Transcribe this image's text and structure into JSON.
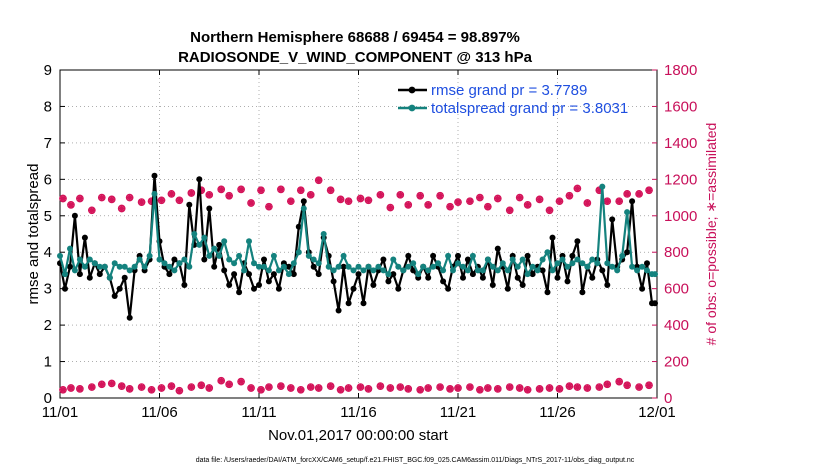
{
  "chart_data": {
    "type": "line",
    "title_line1": "Northern Hemisphere 68688 / 69454 = 98.897%",
    "title_line2": "RADIOSONDE_V_WIND_COMPONENT @ 313 hPa",
    "xlabel": "Nov.01,2017 00:00:00 start",
    "ylabel": "rmse and totalspread",
    "y2label": "# of obs: o=possible; ∗=assimilated",
    "footnote": "data file: /Users/raeder/DAI/ATM_forcXX/CAM6_setup/f.e21.FHIST_BGC.f09_025.CAM6assim.011/Diags_NTrS_2017-11/obs_diag_output.nc",
    "xlim": [
      0,
      30
    ],
    "ylim": [
      0,
      9
    ],
    "y2lim": [
      0,
      1800
    ],
    "x_ticks": [
      0,
      5,
      10,
      15,
      20,
      25,
      30
    ],
    "x_tick_labels": [
      "11/01",
      "11/06",
      "11/11",
      "11/16",
      "11/21",
      "11/26",
      "12/01"
    ],
    "y_ticks": [
      0,
      1,
      2,
      3,
      4,
      5,
      6,
      7,
      8,
      9
    ],
    "y_tick_labels": [
      "0",
      "1",
      "2",
      "3",
      "4",
      "5",
      "6",
      "7",
      "8",
      "9"
    ],
    "y2_ticks": [
      0,
      200,
      400,
      600,
      800,
      1000,
      1200,
      1400,
      1600,
      1800
    ],
    "y2_tick_labels": [
      "0",
      "200",
      "400",
      "600",
      "800",
      "1000",
      "1200",
      "1400",
      "1600",
      "1800"
    ],
    "colors": {
      "rmse": "#000000",
      "totalspread": "#14827e",
      "obs": "#d4145a",
      "legend_text": "#1f4fe0",
      "right_axis": "#c8105a"
    },
    "series": [
      {
        "name": "rmse grand pr = 3.7789",
        "color": "#000000",
        "x": [
          0.0,
          0.25,
          0.5,
          0.75,
          1.0,
          1.25,
          1.5,
          1.75,
          2.0,
          2.25,
          2.5,
          2.75,
          3.0,
          3.25,
          3.5,
          3.75,
          4.0,
          4.25,
          4.5,
          4.75,
          5.0,
          5.25,
          5.5,
          5.75,
          6.0,
          6.25,
          6.5,
          6.75,
          7.0,
          7.25,
          7.5,
          7.75,
          8.0,
          8.25,
          8.5,
          8.75,
          9.0,
          9.25,
          9.5,
          9.75,
          10.0,
          10.25,
          10.5,
          10.75,
          11.0,
          11.25,
          11.5,
          11.75,
          12.0,
          12.25,
          12.5,
          12.75,
          13.0,
          13.25,
          13.5,
          13.75,
          14.0,
          14.25,
          14.5,
          14.75,
          15.0,
          15.25,
          15.5,
          15.75,
          16.0,
          16.25,
          16.5,
          16.75,
          17.0,
          17.25,
          17.5,
          17.75,
          18.0,
          18.25,
          18.5,
          18.75,
          19.0,
          19.25,
          19.5,
          19.75,
          20.0,
          20.25,
          20.5,
          20.75,
          21.0,
          21.25,
          21.5,
          21.75,
          22.0,
          22.25,
          22.5,
          22.75,
          23.0,
          23.25,
          23.5,
          23.75,
          24.0,
          24.25,
          24.5,
          24.75,
          25.0,
          25.25,
          25.5,
          25.75,
          26.0,
          26.25,
          26.5,
          26.75,
          27.0,
          27.25,
          27.5,
          27.75,
          28.0,
          28.25,
          28.5,
          28.75,
          29.0,
          29.25,
          29.5,
          29.75
        ],
        "values": [
          3.7,
          3.0,
          3.6,
          5.0,
          3.4,
          4.4,
          3.3,
          3.7,
          3.4,
          3.6,
          3.3,
          2.8,
          3.0,
          3.3,
          2.2,
          3.5,
          3.9,
          3.5,
          3.8,
          6.1,
          4.3,
          3.6,
          3.4,
          3.8,
          3.7,
          3.1,
          5.3,
          4.2,
          6.0,
          3.8,
          5.2,
          3.6,
          4.2,
          3.5,
          3.1,
          3.4,
          2.9,
          3.7,
          3.4,
          3.0,
          3.1,
          3.8,
          3.2,
          3.4,
          3.0,
          3.7,
          3.6,
          3.4,
          4.7,
          5.4,
          4.0,
          3.6,
          3.4,
          4.4,
          3.9,
          3.2,
          2.4,
          3.6,
          2.6,
          3.0,
          3.4,
          2.6,
          3.6,
          3.1,
          3.5,
          3.8,
          3.2,
          3.4,
          3.0,
          3.5,
          3.9,
          3.5,
          3.3,
          3.6,
          3.3,
          3.9,
          3.6,
          3.2,
          3.0,
          3.6,
          3.9,
          3.3,
          3.8,
          3.4,
          3.6,
          3.3,
          3.8,
          3.1,
          4.1,
          3.6,
          3.0,
          3.9,
          3.3,
          3.1,
          3.9,
          3.4,
          3.6,
          3.5,
          2.9,
          4.4,
          3.3,
          3.9,
          3.2,
          3.9,
          4.3,
          2.9,
          3.6,
          3.3,
          3.8,
          3.5,
          3.1,
          4.9,
          3.6,
          3.8,
          4.0,
          5.4,
          3.6,
          3.0,
          3.7,
          2.6
        ],
        "endpoint": [
          29.9,
          2.6
        ]
      },
      {
        "name": "totalspread grand pr = 3.8031",
        "color": "#14827e",
        "x": [
          0.0,
          0.25,
          0.5,
          0.75,
          1.0,
          1.25,
          1.5,
          1.75,
          2.0,
          2.25,
          2.5,
          2.75,
          3.0,
          3.25,
          3.5,
          3.75,
          4.0,
          4.25,
          4.5,
          4.75,
          5.0,
          5.25,
          5.5,
          5.75,
          6.0,
          6.25,
          6.5,
          6.75,
          7.0,
          7.25,
          7.5,
          7.75,
          8.0,
          8.25,
          8.5,
          8.75,
          9.0,
          9.25,
          9.5,
          9.75,
          10.0,
          10.25,
          10.5,
          10.75,
          11.0,
          11.25,
          11.5,
          11.75,
          12.0,
          12.25,
          12.5,
          12.75,
          13.0,
          13.25,
          13.5,
          13.75,
          14.0,
          14.25,
          14.5,
          14.75,
          15.0,
          15.25,
          15.5,
          15.75,
          16.0,
          16.25,
          16.5,
          16.75,
          17.0,
          17.25,
          17.5,
          17.75,
          18.0,
          18.25,
          18.5,
          18.75,
          19.0,
          19.25,
          19.5,
          19.75,
          20.0,
          20.25,
          20.5,
          20.75,
          21.0,
          21.25,
          21.5,
          21.75,
          22.0,
          22.25,
          22.5,
          22.75,
          23.0,
          23.25,
          23.5,
          23.75,
          24.0,
          24.25,
          24.5,
          24.75,
          25.0,
          25.25,
          25.5,
          25.75,
          26.0,
          26.25,
          26.5,
          26.75,
          27.0,
          27.25,
          27.5,
          27.75,
          28.0,
          28.25,
          28.5,
          28.75,
          29.0,
          29.25,
          29.5,
          29.75
        ],
        "values": [
          3.9,
          3.4,
          4.1,
          3.5,
          3.8,
          3.6,
          3.8,
          3.7,
          3.6,
          3.6,
          3.3,
          3.7,
          3.6,
          3.6,
          3.5,
          3.6,
          3.8,
          3.6,
          3.9,
          5.6,
          3.8,
          3.7,
          3.6,
          3.5,
          3.7,
          3.8,
          3.6,
          4.5,
          4.2,
          4.4,
          3.9,
          4.1,
          3.9,
          4.3,
          3.8,
          3.7,
          3.9,
          3.5,
          4.3,
          3.7,
          3.6,
          3.6,
          3.5,
          3.9,
          3.5,
          3.6,
          3.4,
          3.7,
          4.0,
          5.2,
          3.9,
          3.8,
          3.7,
          4.5,
          3.6,
          3.5,
          3.6,
          3.9,
          3.6,
          3.5,
          3.6,
          3.5,
          3.6,
          3.5,
          3.6,
          3.5,
          3.4,
          3.8,
          3.6,
          3.5,
          3.6,
          3.7,
          3.4,
          3.6,
          3.5,
          3.6,
          3.7,
          3.5,
          3.9,
          3.5,
          3.7,
          3.6,
          3.5,
          3.9,
          3.5,
          3.5,
          3.8,
          3.6,
          3.5,
          3.7,
          3.5,
          3.8,
          3.6,
          3.8,
          3.4,
          3.6,
          3.5,
          3.8,
          4.0,
          3.5,
          3.7,
          3.8,
          3.6,
          3.7,
          3.8,
          3.7,
          3.6,
          3.8,
          3.7,
          5.8,
          3.7,
          3.6,
          3.5,
          3.9,
          5.1,
          3.6,
          3.5,
          3.6,
          3.5,
          3.4
        ],
        "endpoint": [
          29.9,
          3.4
        ]
      },
      {
        "name": "obs possible",
        "marker": "circle",
        "x": [
          0.15,
          0.55,
          1.0,
          1.6,
          2.1,
          2.6,
          3.1,
          3.5,
          4.1,
          4.6,
          5.1,
          5.6,
          6.0,
          6.6,
          7.1,
          7.5,
          8.1,
          8.5,
          9.1,
          9.6,
          10.1,
          10.5,
          11.1,
          11.6,
          12.1,
          12.6,
          13.0,
          13.6,
          14.1,
          14.5,
          15.1,
          15.5,
          16.1,
          16.6,
          17.1,
          17.5,
          18.1,
          18.5,
          19.1,
          19.6,
          20.0,
          20.6,
          21.1,
          21.5,
          22.0,
          22.6,
          23.1,
          23.5,
          24.1,
          24.6,
          25.1,
          25.6,
          26.0,
          26.5,
          27.1,
          27.5,
          28.1,
          28.5,
          29.1,
          29.6
        ],
        "values": [
          1095,
          1060,
          1095,
          1030,
          1100,
          1090,
          1040,
          1100,
          1075,
          1080,
          1085,
          1120,
          1085,
          1125,
          1140,
          1115,
          1145,
          1110,
          1145,
          1070,
          1140,
          1050,
          1145,
          1080,
          1140,
          1115,
          1195,
          1140,
          1090,
          1080,
          1095,
          1085,
          1115,
          1045,
          1115,
          1060,
          1110,
          1060,
          1110,
          1050,
          1075,
          1080,
          1100,
          1050,
          1095,
          1030,
          1100,
          1060,
          1090,
          1030,
          1080,
          1110,
          1150,
          1070,
          1140,
          1080,
          1080,
          1120,
          1120,
          1140
        ]
      },
      {
        "name": "obs assimilated",
        "marker": "asterisk",
        "x": [
          0.15,
          0.55,
          1.0,
          1.6,
          2.1,
          2.6,
          3.1,
          3.5,
          4.1,
          4.6,
          5.1,
          5.6,
          6.0,
          6.6,
          7.1,
          7.5,
          8.1,
          8.5,
          9.1,
          9.6,
          10.1,
          10.5,
          11.1,
          11.6,
          12.1,
          12.6,
          13.0,
          13.6,
          14.1,
          14.5,
          15.1,
          15.5,
          16.1,
          16.6,
          17.1,
          17.5,
          18.1,
          18.5,
          19.1,
          19.6,
          20.0,
          20.6,
          21.1,
          21.5,
          22.0,
          22.6,
          23.1,
          23.5,
          24.1,
          24.6,
          25.1,
          25.6,
          26.0,
          26.5,
          27.1,
          27.5,
          28.1,
          28.5,
          29.1,
          29.6
        ],
        "values": [
          45,
          55,
          50,
          60,
          75,
          80,
          65,
          50,
          60,
          45,
          55,
          65,
          40,
          60,
          70,
          55,
          95,
          75,
          90,
          55,
          45,
          60,
          65,
          55,
          45,
          60,
          55,
          65,
          45,
          55,
          60,
          50,
          65,
          55,
          60,
          50,
          45,
          55,
          60,
          50,
          55,
          60,
          45,
          55,
          50,
          60,
          55,
          45,
          50,
          55,
          50,
          65,
          60,
          55,
          60,
          75,
          90,
          70,
          60,
          70
        ]
      }
    ],
    "legend": {
      "position": "top-right",
      "entries": [
        "rmse grand pr = 3.7789",
        "totalspread grand pr = 3.8031"
      ]
    }
  }
}
